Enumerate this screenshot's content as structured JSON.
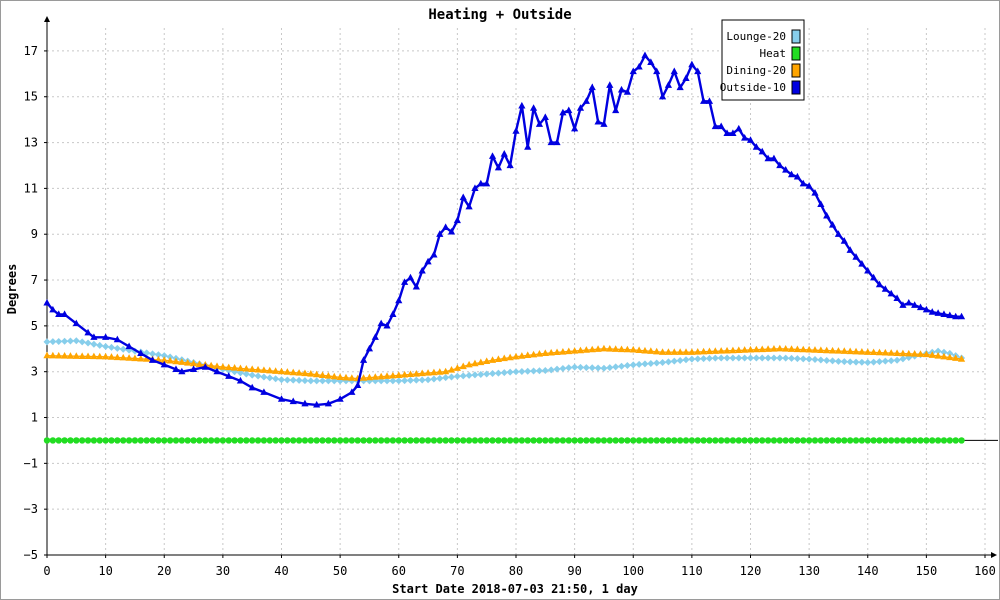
{
  "chart_data": {
    "type": "line",
    "title": "Heating + Outside",
    "xlabel": "Start Date 2018-07-03 21:50, 1 day",
    "ylabel": "Degrees",
    "xlim": [
      0,
      160
    ],
    "ylim": [
      -5,
      18
    ],
    "xticks": [
      0,
      10,
      20,
      30,
      40,
      50,
      60,
      70,
      80,
      90,
      100,
      110,
      120,
      130,
      140,
      150,
      160
    ],
    "yticks": [
      -5,
      -3,
      -1,
      1,
      3,
      5,
      7,
      9,
      11,
      13,
      15,
      17
    ],
    "grid": true,
    "legend_position": "top-right",
    "series": [
      {
        "name": "Lounge-20",
        "color": "#87ceeb",
        "marker": "diamond",
        "points": [
          [
            0,
            4.3
          ],
          [
            5,
            4.35
          ],
          [
            10,
            4.1
          ],
          [
            15,
            3.9
          ],
          [
            20,
            3.7
          ],
          [
            25,
            3.4
          ],
          [
            30,
            3.1
          ],
          [
            35,
            2.85
          ],
          [
            40,
            2.65
          ],
          [
            45,
            2.6
          ],
          [
            50,
            2.6
          ],
          [
            55,
            2.6
          ],
          [
            60,
            2.6
          ],
          [
            65,
            2.65
          ],
          [
            70,
            2.8
          ],
          [
            75,
            2.9
          ],
          [
            80,
            3.0
          ],
          [
            85,
            3.05
          ],
          [
            90,
            3.2
          ],
          [
            95,
            3.15
          ],
          [
            100,
            3.3
          ],
          [
            105,
            3.4
          ],
          [
            110,
            3.55
          ],
          [
            115,
            3.6
          ],
          [
            120,
            3.6
          ],
          [
            125,
            3.6
          ],
          [
            130,
            3.55
          ],
          [
            135,
            3.45
          ],
          [
            140,
            3.4
          ],
          [
            145,
            3.5
          ],
          [
            150,
            3.8
          ],
          [
            152,
            3.9
          ],
          [
            154,
            3.8
          ],
          [
            156,
            3.6
          ]
        ]
      },
      {
        "name": "Heat",
        "color": "#22dd22",
        "marker": "circle",
        "points": [
          [
            0,
            0
          ],
          [
            156,
            0
          ]
        ]
      },
      {
        "name": "Dining-20",
        "color": "#ffa500",
        "marker": "triangle",
        "points": [
          [
            0,
            3.7
          ],
          [
            10,
            3.65
          ],
          [
            20,
            3.5
          ],
          [
            30,
            3.2
          ],
          [
            40,
            3.0
          ],
          [
            45,
            2.9
          ],
          [
            50,
            2.75
          ],
          [
            53,
            2.7
          ],
          [
            58,
            2.8
          ],
          [
            63,
            2.9
          ],
          [
            68,
            3.0
          ],
          [
            72,
            3.3
          ],
          [
            76,
            3.5
          ],
          [
            80,
            3.65
          ],
          [
            85,
            3.8
          ],
          [
            90,
            3.9
          ],
          [
            95,
            4.0
          ],
          [
            100,
            3.95
          ],
          [
            105,
            3.85
          ],
          [
            110,
            3.85
          ],
          [
            115,
            3.9
          ],
          [
            120,
            3.95
          ],
          [
            125,
            4.0
          ],
          [
            130,
            3.95
          ],
          [
            135,
            3.9
          ],
          [
            140,
            3.85
          ],
          [
            145,
            3.8
          ],
          [
            150,
            3.75
          ],
          [
            156,
            3.55
          ]
        ]
      },
      {
        "name": "Outside-10",
        "color": "#0000e0",
        "marker": "triangle",
        "points": [
          [
            0,
            6.0
          ],
          [
            1,
            5.7
          ],
          [
            2,
            5.5
          ],
          [
            3,
            5.5
          ],
          [
            5,
            5.1
          ],
          [
            7,
            4.7
          ],
          [
            8,
            4.5
          ],
          [
            10,
            4.5
          ],
          [
            12,
            4.4
          ],
          [
            14,
            4.1
          ],
          [
            16,
            3.8
          ],
          [
            18,
            3.5
          ],
          [
            20,
            3.3
          ],
          [
            22,
            3.1
          ],
          [
            23,
            3.0
          ],
          [
            25,
            3.1
          ],
          [
            27,
            3.2
          ],
          [
            29,
            3.0
          ],
          [
            31,
            2.8
          ],
          [
            33,
            2.6
          ],
          [
            35,
            2.3
          ],
          [
            37,
            2.1
          ],
          [
            40,
            1.8
          ],
          [
            42,
            1.7
          ],
          [
            44,
            1.6
          ],
          [
            46,
            1.55
          ],
          [
            48,
            1.6
          ],
          [
            50,
            1.8
          ],
          [
            52,
            2.1
          ],
          [
            53,
            2.4
          ],
          [
            54,
            3.5
          ],
          [
            55,
            4.0
          ],
          [
            56,
            4.5
          ],
          [
            57,
            5.1
          ],
          [
            58,
            5.0
          ],
          [
            59,
            5.5
          ],
          [
            60,
            6.1
          ],
          [
            61,
            6.9
          ],
          [
            62,
            7.1
          ],
          [
            63,
            6.7
          ],
          [
            64,
            7.4
          ],
          [
            65,
            7.8
          ],
          [
            66,
            8.1
          ],
          [
            67,
            9.0
          ],
          [
            68,
            9.3
          ],
          [
            69,
            9.1
          ],
          [
            70,
            9.6
          ],
          [
            71,
            10.6
          ],
          [
            72,
            10.2
          ],
          [
            73,
            11.0
          ],
          [
            74,
            11.2
          ],
          [
            75,
            11.2
          ],
          [
            76,
            12.4
          ],
          [
            77,
            11.9
          ],
          [
            78,
            12.5
          ],
          [
            79,
            12.0
          ],
          [
            80,
            13.5
          ],
          [
            81,
            14.6
          ],
          [
            82,
            12.8
          ],
          [
            83,
            14.5
          ],
          [
            84,
            13.8
          ],
          [
            85,
            14.1
          ],
          [
            86,
            13.0
          ],
          [
            87,
            13.0
          ],
          [
            88,
            14.3
          ],
          [
            89,
            14.4
          ],
          [
            90,
            13.6
          ],
          [
            91,
            14.5
          ],
          [
            92,
            14.8
          ],
          [
            93,
            15.4
          ],
          [
            94,
            13.9
          ],
          [
            95,
            13.8
          ],
          [
            96,
            15.5
          ],
          [
            97,
            14.4
          ],
          [
            98,
            15.3
          ],
          [
            99,
            15.2
          ],
          [
            100,
            16.1
          ],
          [
            101,
            16.3
          ],
          [
            102,
            16.8
          ],
          [
            103,
            16.5
          ],
          [
            104,
            16.1
          ],
          [
            105,
            15.0
          ],
          [
            106,
            15.5
          ],
          [
            107,
            16.1
          ],
          [
            108,
            15.4
          ],
          [
            109,
            15.8
          ],
          [
            110,
            16.4
          ],
          [
            111,
            16.1
          ],
          [
            112,
            14.8
          ],
          [
            113,
            14.8
          ],
          [
            114,
            13.7
          ],
          [
            115,
            13.7
          ],
          [
            116,
            13.4
          ],
          [
            117,
            13.4
          ],
          [
            118,
            13.6
          ],
          [
            119,
            13.2
          ],
          [
            120,
            13.1
          ],
          [
            121,
            12.8
          ],
          [
            122,
            12.6
          ],
          [
            123,
            12.3
          ],
          [
            124,
            12.3
          ],
          [
            125,
            12.0
          ],
          [
            126,
            11.8
          ],
          [
            127,
            11.6
          ],
          [
            128,
            11.5
          ],
          [
            129,
            11.2
          ],
          [
            130,
            11.1
          ],
          [
            131,
            10.8
          ],
          [
            132,
            10.3
          ],
          [
            133,
            9.8
          ],
          [
            134,
            9.4
          ],
          [
            135,
            9.0
          ],
          [
            136,
            8.7
          ],
          [
            137,
            8.3
          ],
          [
            138,
            8.0
          ],
          [
            139,
            7.7
          ],
          [
            140,
            7.4
          ],
          [
            141,
            7.1
          ],
          [
            142,
            6.8
          ],
          [
            143,
            6.6
          ],
          [
            144,
            6.4
          ],
          [
            145,
            6.2
          ],
          [
            146,
            5.9
          ],
          [
            147,
            6.0
          ],
          [
            148,
            5.9
          ],
          [
            149,
            5.8
          ],
          [
            150,
            5.7
          ],
          [
            151,
            5.6
          ],
          [
            152,
            5.55
          ],
          [
            153,
            5.5
          ],
          [
            154,
            5.45
          ],
          [
            155,
            5.4
          ],
          [
            156,
            5.4
          ]
        ]
      }
    ]
  }
}
